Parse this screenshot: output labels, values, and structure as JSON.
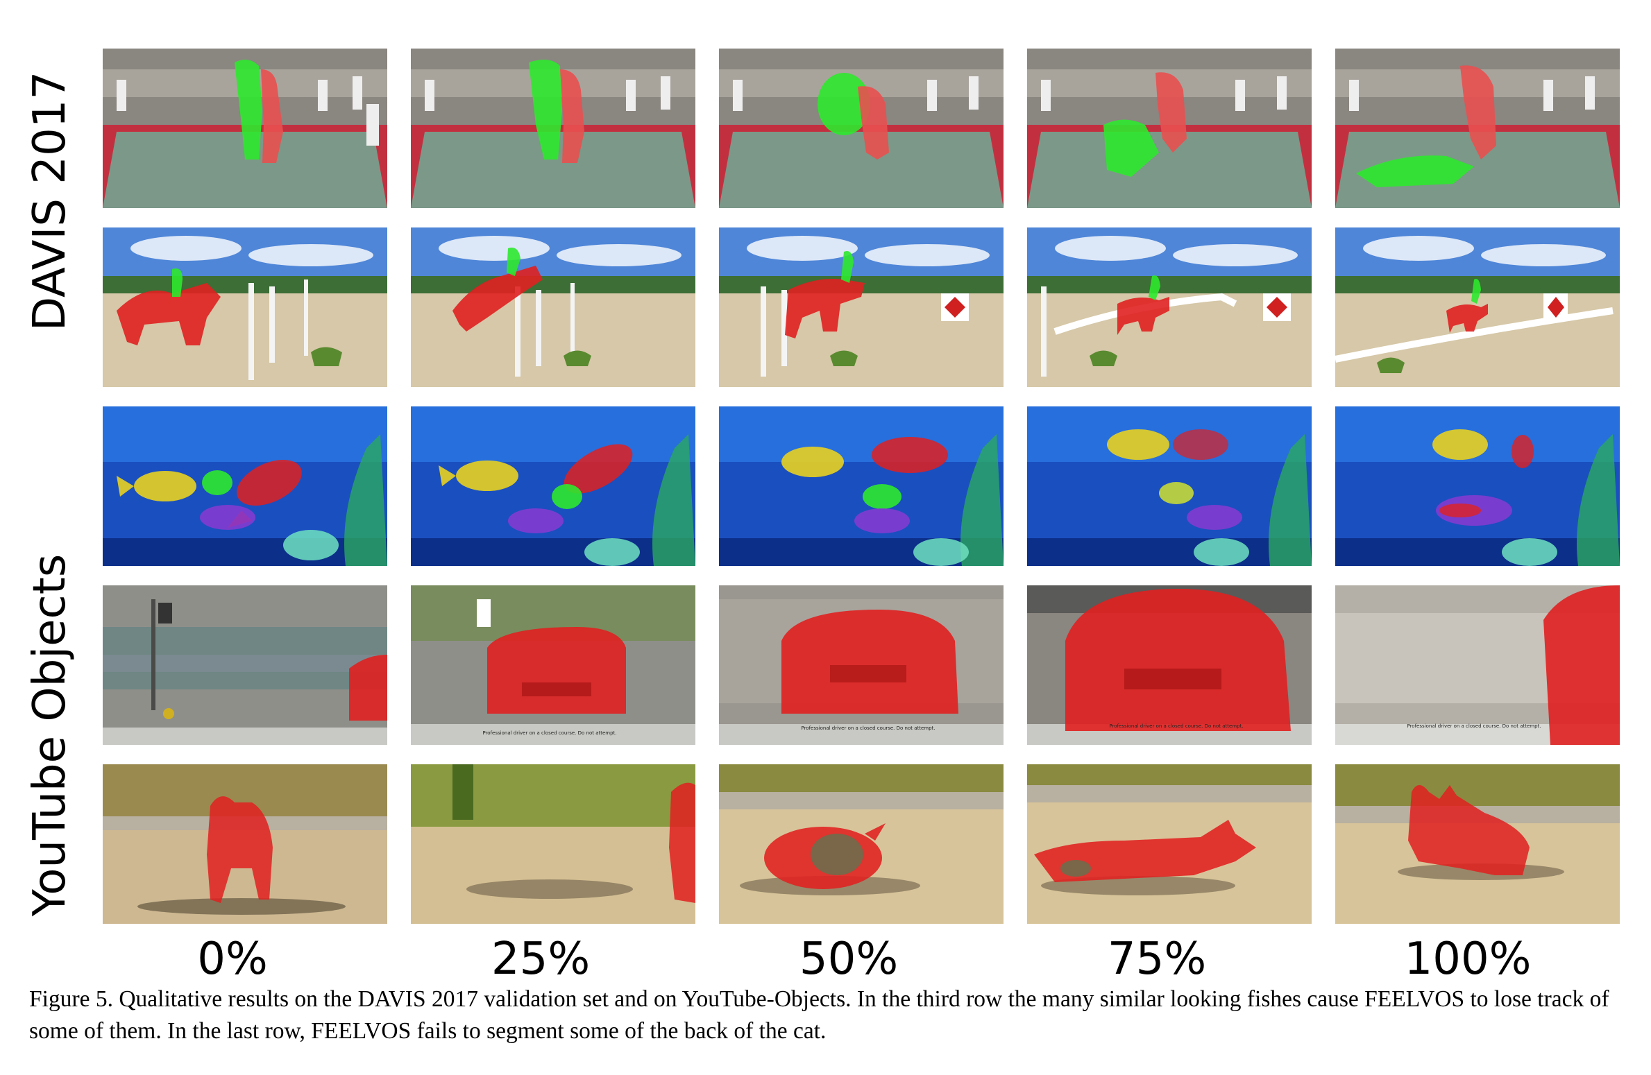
{
  "row_labels": {
    "davis": "DAVIS 2017",
    "youtube": "YouTube Objects"
  },
  "progress_labels": [
    "0%",
    "25%",
    "50%",
    "75%",
    "100%"
  ],
  "caption": "Figure 5. Qualitative results on the DAVIS 2017 validation set and on YouTube-Objects. In the third row the many similar looking fishes cause FEELVOS to lose track of some of them. In the last row, FEELVOS fails to segment some of the back of the cat.",
  "car_subtitle": "Professional driver on a closed course. Do not attempt.",
  "rows": [
    {
      "scene": "judo",
      "frames": [
        "judo-0",
        "judo-25",
        "judo-50",
        "judo-75",
        "judo-100"
      ]
    },
    {
      "scene": "horse-jump",
      "frames": [
        "horse-0",
        "horse-25",
        "horse-50",
        "horse-75",
        "horse-100"
      ]
    },
    {
      "scene": "aquarium-fish",
      "frames": [
        "fish-0",
        "fish-25",
        "fish-50",
        "fish-75",
        "fish-100"
      ]
    },
    {
      "scene": "red-car",
      "frames": [
        "car-0",
        "car-25",
        "car-50",
        "car-75",
        "car-100"
      ]
    },
    {
      "scene": "cat",
      "frames": [
        "cat-0",
        "cat-25",
        "cat-50",
        "cat-75",
        "cat-100"
      ]
    }
  ],
  "colors": {
    "mask_red": "#e02020",
    "mask_green": "#2ee82e",
    "mask_yellow": "#e8d020",
    "mask_purple": "#8a3ad0",
    "mask_cyan": "#70e0c0"
  }
}
